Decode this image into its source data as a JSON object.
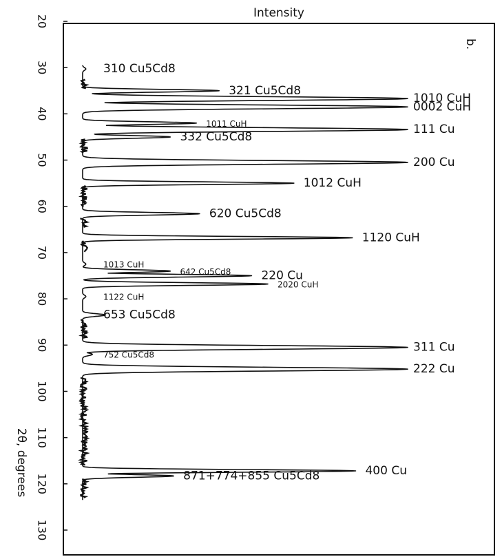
{
  "chart_data": {
    "type": "line",
    "orientation": "vertical-2theta",
    "panel_label": "b.",
    "intensity_label": "Intensity",
    "angle_label": "2θ, degrees",
    "ylim": [
      20,
      132
    ],
    "y_ticks": [
      20,
      30,
      40,
      50,
      60,
      70,
      80,
      90,
      100,
      110,
      120,
      130
    ],
    "intensity_max": 100,
    "line_color": "#111111",
    "background_noise": [
      {
        "from": 32.5,
        "to": 34.5
      },
      {
        "from": 45.5,
        "to": 48.5
      },
      {
        "from": 55.5,
        "to": 60.0
      },
      {
        "from": 62.5,
        "to": 64.5
      },
      {
        "from": 67.5,
        "to": 70.0
      },
      {
        "from": 84.5,
        "to": 88.5
      },
      {
        "from": 97.0,
        "to": 116.0
      },
      {
        "from": 119.0,
        "to": 123.0
      }
    ],
    "peaks": [
      {
        "two_theta": 30.3,
        "intensity": 1,
        "label": "310 Cu5Cd8"
      },
      {
        "two_theta": 35.0,
        "intensity": 42,
        "label": "321 Cu5Cd8"
      },
      {
        "two_theta": 36.7,
        "intensity": 100,
        "label": "1010 CuH"
      },
      {
        "two_theta": 38.5,
        "intensity": 100,
        "label": "0002 CuH"
      },
      {
        "two_theta": 42.0,
        "intensity": 35,
        "label": "1011 CuH"
      },
      {
        "two_theta": 43.4,
        "intensity": 100,
        "label": "111 Cu"
      },
      {
        "two_theta": 45.0,
        "intensity": 27,
        "label": "332 Cu5Cd8"
      },
      {
        "two_theta": 50.5,
        "intensity": 100,
        "label": "200 Cu"
      },
      {
        "two_theta": 55.0,
        "intensity": 65,
        "label": "1012 CuH"
      },
      {
        "two_theta": 61.6,
        "intensity": 36,
        "label": "620 Cu5Cd8"
      },
      {
        "two_theta": 66.8,
        "intensity": 83,
        "label": "1120 CuH"
      },
      {
        "two_theta": 72.5,
        "intensity": 1,
        "label": "1013 CuH"
      },
      {
        "two_theta": 74.0,
        "intensity": 27,
        "label": "642 Cu5Cd8"
      },
      {
        "two_theta": 75.0,
        "intensity": 52,
        "label": "220 Cu"
      },
      {
        "two_theta": 76.8,
        "intensity": 57,
        "label": "2020 CuH"
      },
      {
        "two_theta": 79.5,
        "intensity": 1,
        "label": "1122 CuH"
      },
      {
        "two_theta": 83.5,
        "intensity": 7,
        "label": "653 Cu5Cd8"
      },
      {
        "two_theta": 90.5,
        "intensity": 100,
        "label": "311 Cu"
      },
      {
        "two_theta": 92.0,
        "intensity": 3,
        "label": "752 Cu5Cd8"
      },
      {
        "two_theta": 95.2,
        "intensity": 100,
        "label": "222 Cu"
      },
      {
        "two_theta": 117.2,
        "intensity": 84,
        "label": "400 Cu"
      },
      {
        "two_theta": 118.3,
        "intensity": 28,
        "label": "871+774+855 Cu5Cd8"
      }
    ]
  }
}
